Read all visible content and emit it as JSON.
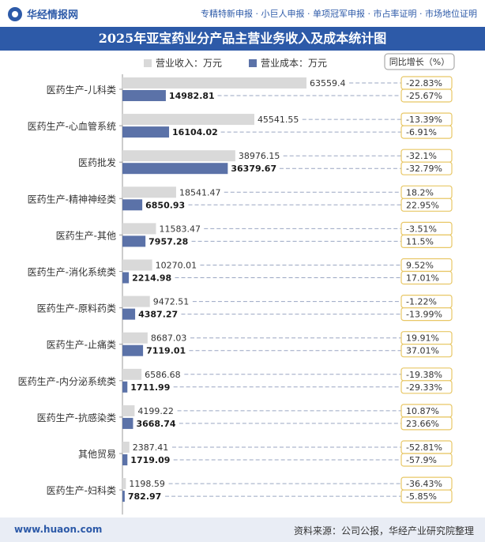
{
  "header": {
    "logo_text": "华经情报网",
    "services": "专精特新申报 · 小巨人申报 · 单项冠军申报 · 市占率证明 · 市场地位证明"
  },
  "footer": {
    "website": "www.huaon.com",
    "source": "资料来源：公司公报，华经产业研究院整理"
  },
  "colors": {
    "header_blue": "#2d5aa8",
    "revenue_bar": "#d9d9d9",
    "cost_bar": "#5b72a8",
    "growth_box_border": "#e8c766"
  },
  "chart_data": {
    "type": "bar",
    "orientation": "horizontal",
    "title": "2025年亚宝药业分产品主营业务收入及成本统计图",
    "categories": [
      "医药生产-儿科类",
      "医药生产-心血管系统",
      "医药批发",
      "医药生产-精神神经类",
      "医药生产-其他",
      "医药生产-消化系统类",
      "医药生产-原料药类",
      "医药生产-止痛类",
      "医药生产-内分泌系统类",
      "医药生产-抗感染类",
      "其他贸易",
      "医药生产-妇科类"
    ],
    "series": [
      {
        "name": "营业收入：万元",
        "color": "#d9d9d9",
        "values": [
          63559.4,
          45541.55,
          38976.15,
          18541.47,
          11583.47,
          10270.01,
          9472.51,
          8687.03,
          6586.68,
          4199.22,
          2387.41,
          1198.59
        ],
        "labels": [
          "63559.4",
          "45541.55",
          "38976.15",
          "18541.47",
          "11583.47",
          "10270.01",
          "9472.51",
          "8687.03",
          "6586.68",
          "4199.22",
          "2387.41",
          "1198.59"
        ]
      },
      {
        "name": "营业成本：万元",
        "color": "#5b72a8",
        "values": [
          14982.81,
          16104.02,
          36379.67,
          6850.93,
          7957.28,
          2214.98,
          4387.27,
          7119.01,
          1711.99,
          3668.74,
          1719.09,
          782.97
        ],
        "labels": [
          "14982.81",
          "16104.02",
          "36379.67",
          "6850.93",
          "7957.28",
          "2214.98",
          "4387.27",
          "7119.01",
          "1711.99",
          "3668.74",
          "1719.09",
          "782.97"
        ]
      }
    ],
    "growth_header": "同比增长（%）",
    "growth": {
      "revenue": [
        "-22.83%",
        "-13.39%",
        "-32.1%",
        "18.2%",
        "-3.51%",
        "9.52%",
        "-1.22%",
        "19.91%",
        "-19.38%",
        "10.87%",
        "-52.81%",
        "-36.43%"
      ],
      "cost": [
        "-25.67%",
        "-6.91%",
        "-32.79%",
        "22.95%",
        "11.5%",
        "17.01%",
        "-13.99%",
        "37.01%",
        "-29.33%",
        "23.66%",
        "-57.9%",
        "-5.85%"
      ]
    },
    "xlim": [
      0,
      66000
    ],
    "legend": "top-center",
    "grid": false
  }
}
